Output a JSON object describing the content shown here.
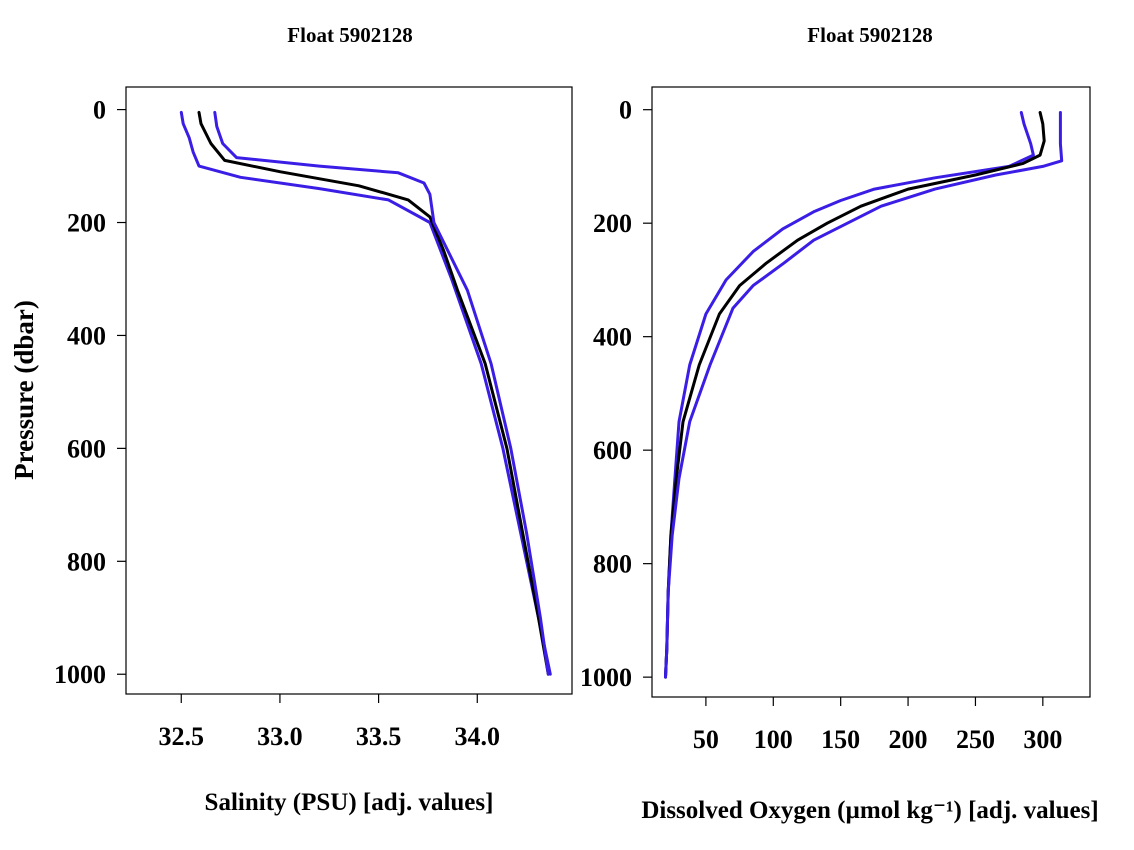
{
  "colors": {
    "mean": "#000000",
    "bounds": "#3a1ee6"
  },
  "chart_data": [
    {
      "type": "line",
      "title": "Float 5902128",
      "xlabel": "Salinity (PSU)  [adj. values]",
      "ylabel": "Pressure (dbar)",
      "xlim": [
        32.22,
        34.48
      ],
      "ylim": [
        1035,
        -40
      ],
      "xticks": [
        32.5,
        33.0,
        33.5,
        34.0
      ],
      "xtick_labels": [
        "32.5",
        "33.0",
        "33.5",
        "34.0"
      ],
      "yticks": [
        0,
        200,
        400,
        600,
        800,
        1000
      ],
      "ytick_labels": [
        "0",
        "200",
        "400",
        "600",
        "800",
        "1000"
      ],
      "grid": false,
      "series": [
        {
          "role": "lower",
          "color": "#3a1ee6",
          "x": [
            32.5,
            32.51,
            32.54,
            32.56,
            32.59,
            32.8,
            33.2,
            33.55,
            33.76,
            33.87,
            34.02,
            34.13,
            34.22,
            34.31,
            34.37
          ],
          "y": [
            5,
            25,
            50,
            75,
            100,
            120,
            140,
            160,
            200,
            300,
            450,
            600,
            750,
            900,
            1000
          ]
        },
        {
          "role": "mean",
          "color": "#000000",
          "x": [
            32.59,
            32.6,
            32.65,
            32.72,
            33.0,
            33.4,
            33.65,
            33.76,
            33.83,
            33.9,
            34.04,
            34.15,
            34.23,
            34.31,
            34.36
          ],
          "y": [
            5,
            25,
            60,
            90,
            110,
            135,
            160,
            190,
            250,
            320,
            450,
            600,
            750,
            900,
            1000
          ]
        },
        {
          "role": "upper",
          "color": "#3a1ee6",
          "x": [
            32.67,
            32.68,
            32.71,
            32.78,
            33.2,
            33.6,
            33.73,
            33.76,
            33.78,
            33.95,
            34.07,
            34.17,
            34.25,
            34.32,
            34.36
          ],
          "y": [
            5,
            30,
            60,
            85,
            100,
            112,
            130,
            150,
            200,
            320,
            450,
            600,
            750,
            900,
            1000
          ]
        }
      ]
    },
    {
      "type": "line",
      "title": "Float 5902128",
      "xlabel": "Dissolved Oxygen (µmol kg⁻¹)  [adj. values]",
      "ylabel": "",
      "xlim": [
        10,
        335
      ],
      "ylim": [
        1035,
        -40
      ],
      "xticks": [
        50,
        100,
        150,
        200,
        250,
        300
      ],
      "xtick_labels": [
        "50",
        "100",
        "150",
        "200",
        "250",
        "300"
      ],
      "yticks": [
        0,
        200,
        400,
        600,
        800,
        1000
      ],
      "ytick_labels": [
        "0",
        "200",
        "400",
        "600",
        "800",
        "1000"
      ],
      "grid": false,
      "series": [
        {
          "role": "lower",
          "color": "#3a1ee6",
          "x": [
            284,
            286,
            291,
            293,
            275,
            220,
            175,
            150,
            130,
            107,
            85,
            65,
            50,
            38,
            30,
            27,
            24,
            22,
            21,
            20
          ],
          "y": [
            5,
            25,
            60,
            80,
            100,
            120,
            140,
            160,
            180,
            210,
            250,
            300,
            360,
            450,
            550,
            650,
            750,
            850,
            950,
            1000
          ]
        },
        {
          "role": "mean",
          "color": "#000000",
          "x": [
            298,
            300,
            301,
            298,
            285,
            250,
            200,
            165,
            140,
            118,
            95,
            75,
            60,
            45,
            33,
            28,
            24,
            22,
            21,
            20
          ],
          "y": [
            5,
            25,
            55,
            80,
            95,
            115,
            140,
            170,
            200,
            230,
            270,
            310,
            360,
            450,
            550,
            650,
            750,
            850,
            950,
            1000
          ]
        },
        {
          "role": "upper",
          "color": "#3a1ee6",
          "x": [
            313,
            313,
            313,
            314,
            300,
            265,
            220,
            180,
            155,
            130,
            108,
            85,
            70,
            53,
            38,
            30,
            25,
            22,
            21,
            20
          ],
          "y": [
            5,
            30,
            60,
            90,
            100,
            115,
            140,
            170,
            200,
            230,
            270,
            310,
            350,
            450,
            550,
            650,
            750,
            850,
            950,
            1000
          ]
        }
      ]
    }
  ]
}
